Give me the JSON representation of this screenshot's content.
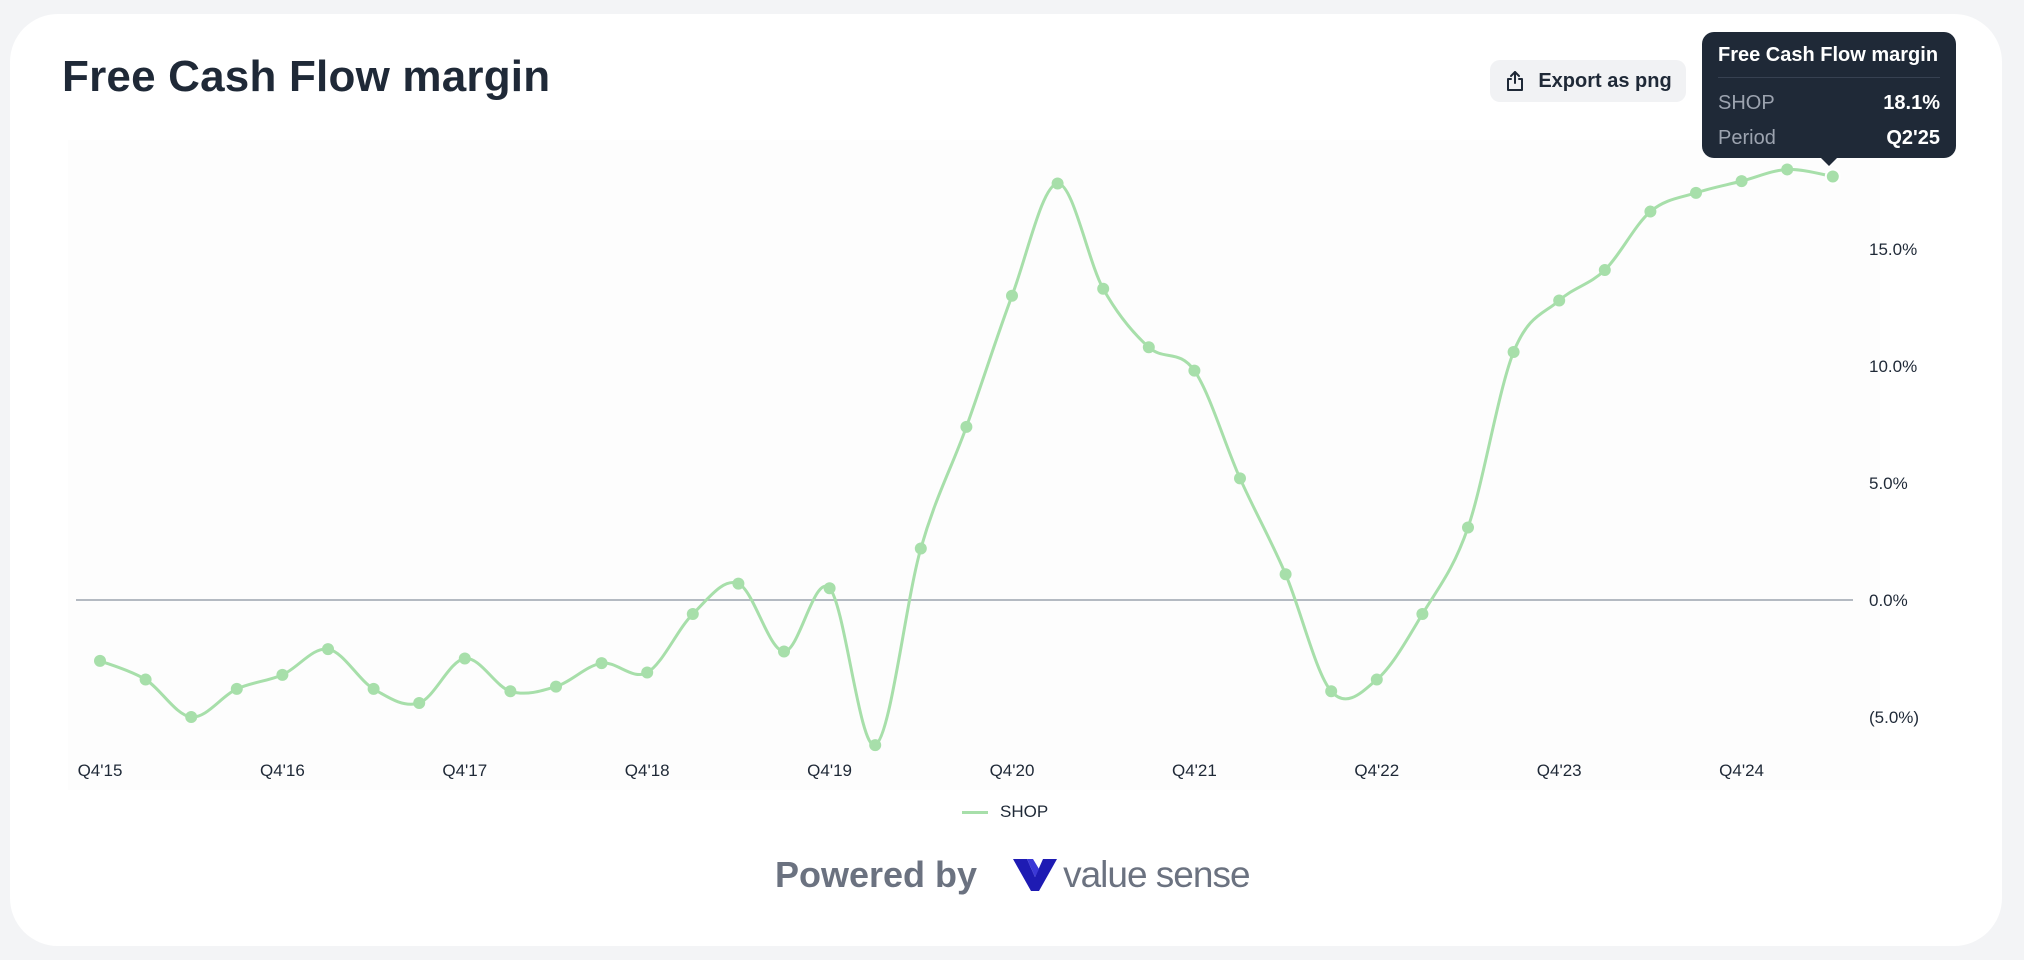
{
  "header": {
    "title": "Free Cash Flow margin",
    "export_label": "Export as png"
  },
  "tooltip": {
    "title": "Free Cash Flow margin",
    "rows": [
      {
        "key": "SHOP",
        "value": "18.1%"
      },
      {
        "key": "Period",
        "value": "Q2'25"
      }
    ]
  },
  "footer": {
    "powered_label": "Powered by",
    "brand_name": "value sense"
  },
  "colors": {
    "series": "#a7dfaa",
    "zero_line": "#9ca3af",
    "brand": "#1e1bb3"
  },
  "chart_data": {
    "type": "line",
    "title": "Free Cash Flow margin",
    "x": [
      "Q4'15",
      "Q1'16",
      "Q2'16",
      "Q3'16",
      "Q4'16",
      "Q1'17",
      "Q2'17",
      "Q3'17",
      "Q4'17",
      "Q1'18",
      "Q2'18",
      "Q3'18",
      "Q4'18",
      "Q1'19",
      "Q2'19",
      "Q3'19",
      "Q4'19",
      "Q1'20",
      "Q2'20",
      "Q3'20",
      "Q4'20",
      "Q1'21",
      "Q2'21",
      "Q3'21",
      "Q4'21",
      "Q1'22",
      "Q2'22",
      "Q3'22",
      "Q4'22",
      "Q1'23",
      "Q2'23",
      "Q3'23",
      "Q4'23",
      "Q1'24",
      "Q2'24",
      "Q3'24",
      "Q4'24",
      "Q1'25",
      "Q2'25"
    ],
    "x_tick_labels": [
      "Q4'15",
      "Q4'16",
      "Q4'17",
      "Q4'18",
      "Q4'19",
      "Q4'20",
      "Q4'21",
      "Q4'22",
      "Q4'23",
      "Q4'24"
    ],
    "series": [
      {
        "name": "SHOP",
        "values": [
          -2.6,
          -3.4,
          -5.0,
          -3.8,
          -3.2,
          -2.1,
          -3.8,
          -4.4,
          -2.5,
          -3.9,
          -3.7,
          -2.7,
          -3.1,
          -0.6,
          0.7,
          -2.2,
          0.5,
          -6.2,
          2.2,
          7.4,
          13.0,
          17.8,
          13.3,
          10.8,
          9.8,
          5.2,
          1.1,
          -3.9,
          -3.4,
          -0.6,
          3.1,
          10.6,
          12.8,
          14.1,
          16.6,
          17.4,
          17.9,
          18.4,
          18.1
        ]
      }
    ],
    "y_ticks": [
      -5,
      0,
      5,
      10,
      15
    ],
    "y_tick_labels": [
      "(5.0%)",
      "0.0%",
      "5.0%",
      "10.0%",
      "15.0%"
    ],
    "ylim": [
      -6.5,
      19.5
    ],
    "legend": "bottom-center",
    "grid": false
  }
}
